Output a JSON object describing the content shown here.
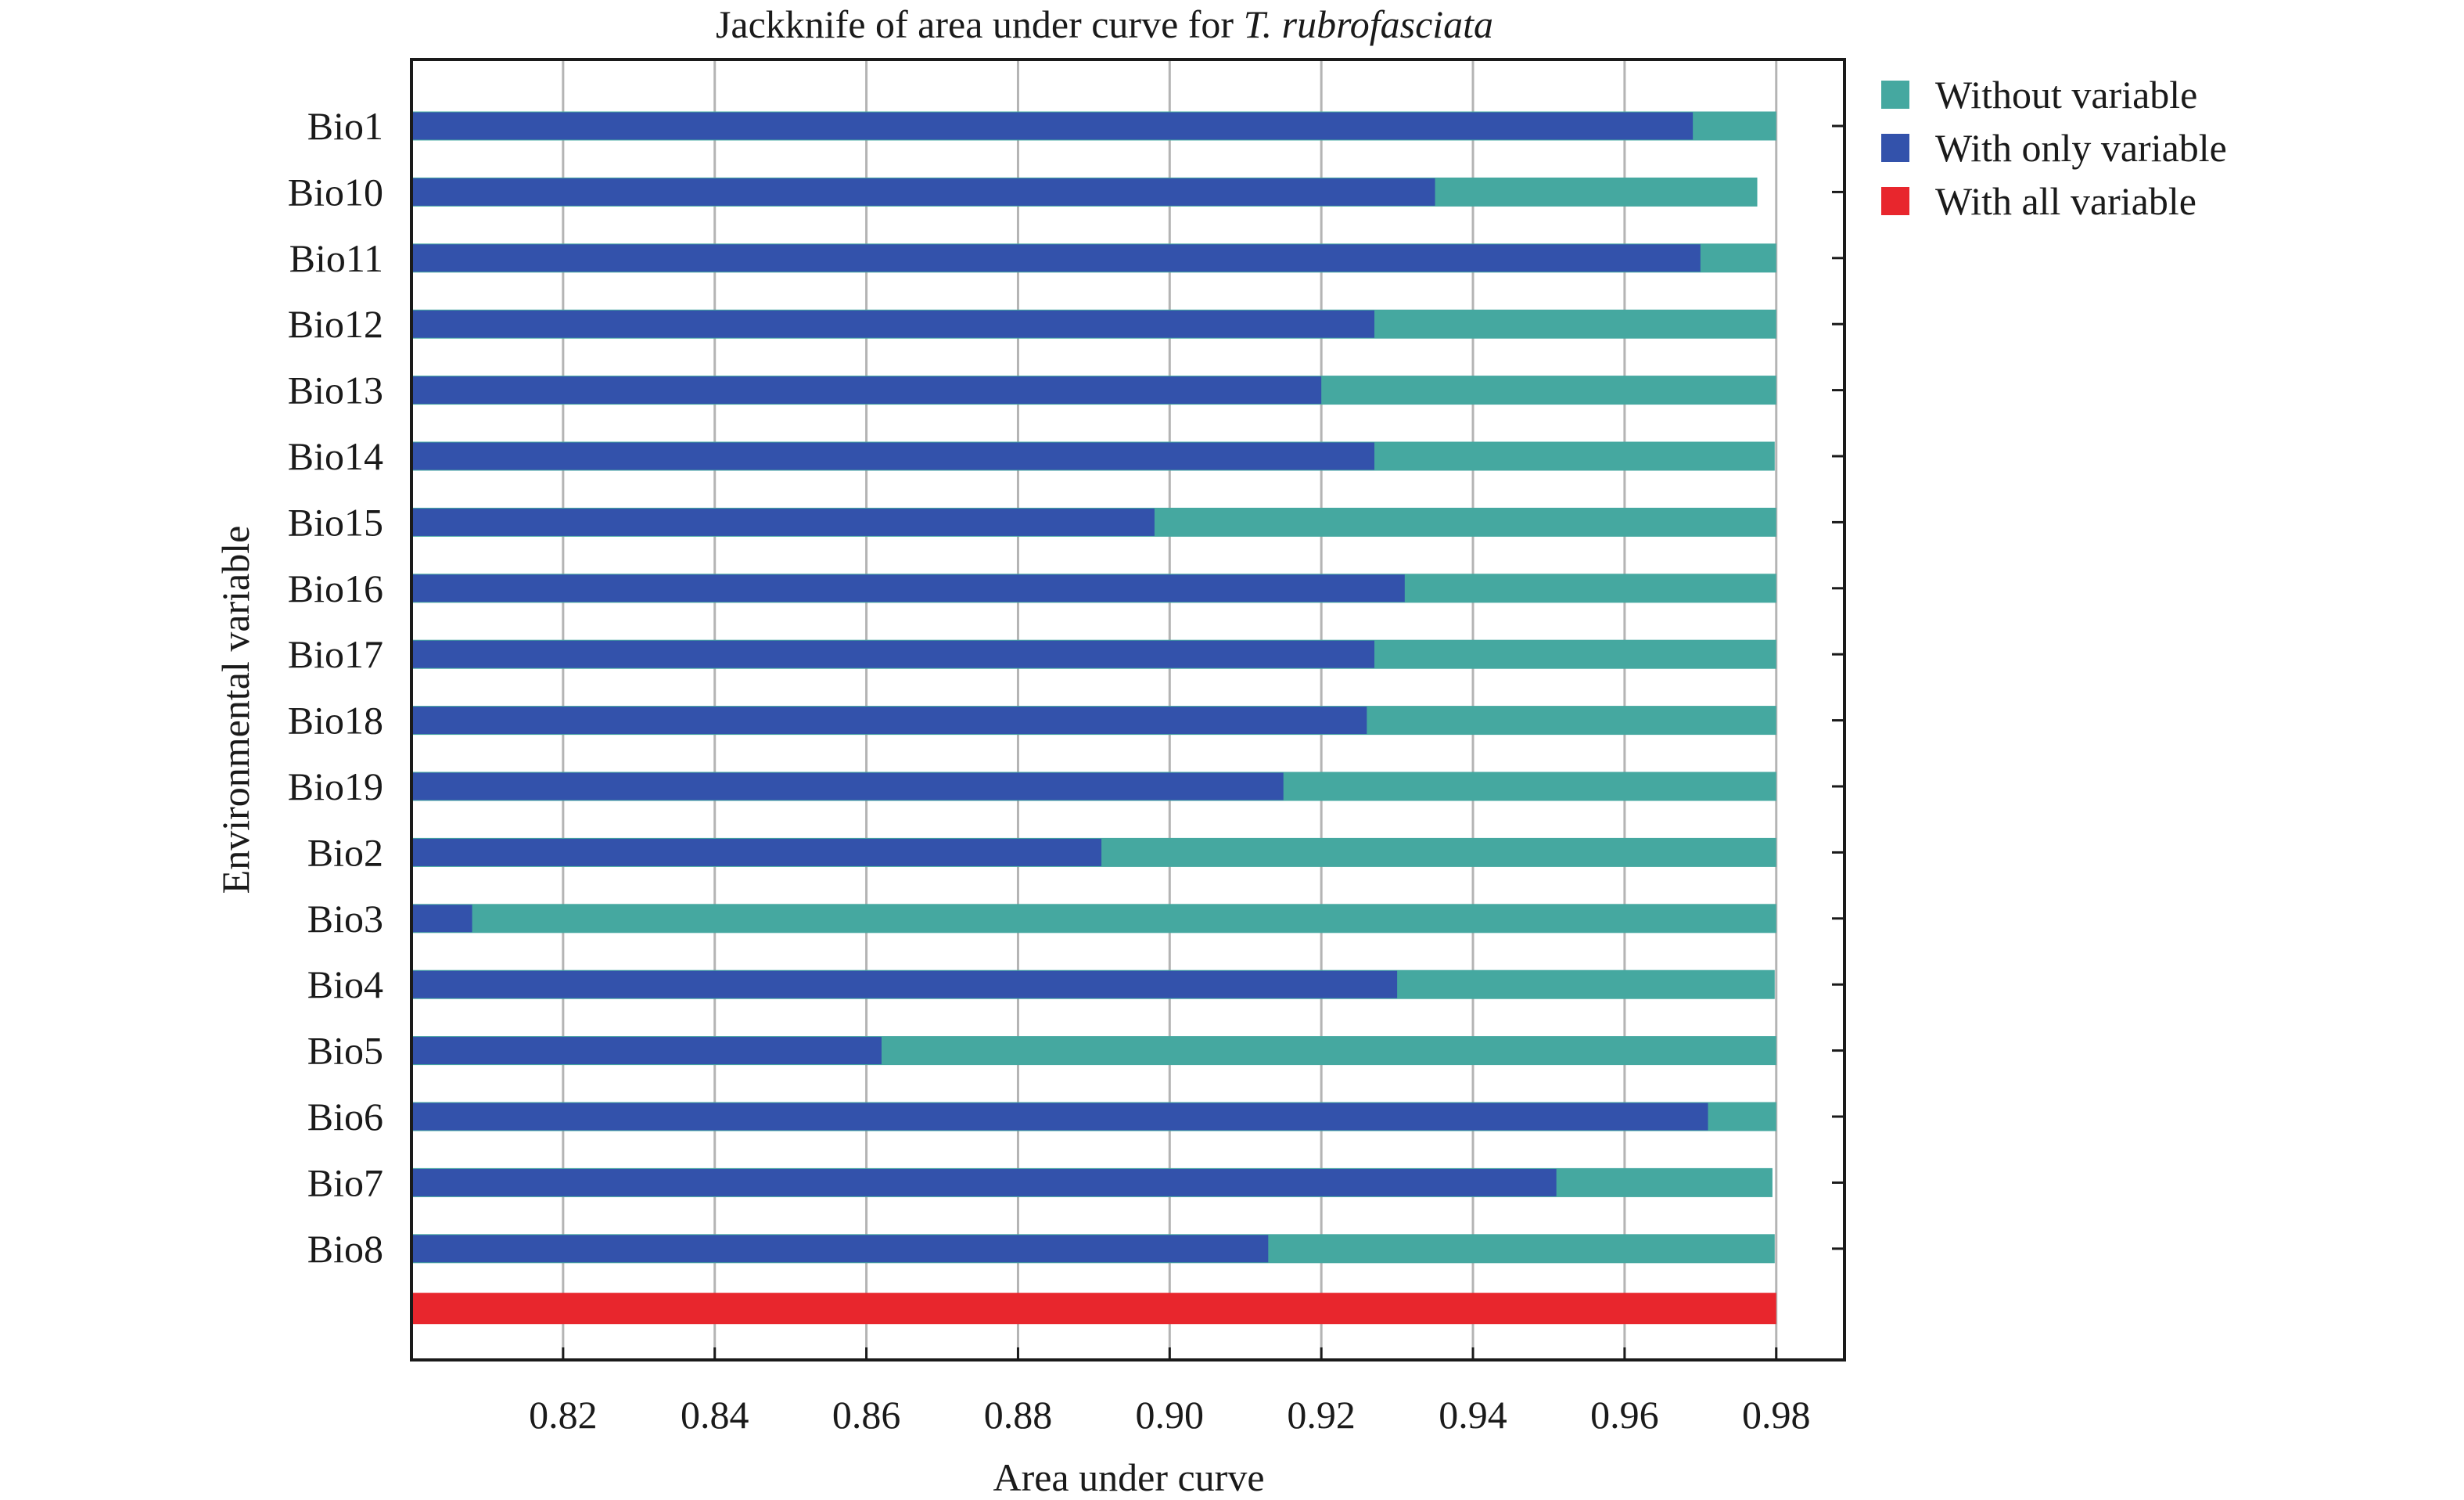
{
  "chart_data": {
    "type": "bar",
    "title_prefix": "Jackknife of area under curve for ",
    "title_italic": "T. rubrofasciata",
    "xlabel": "Area under curve",
    "ylabel": "Environmental variable",
    "xlim": [
      0.8,
      0.989
    ],
    "xticks": [
      0.82,
      0.84,
      0.86,
      0.88,
      0.9,
      0.92,
      0.94,
      0.96,
      0.98
    ],
    "xtick_labels": [
      "0.82",
      "0.84",
      "0.86",
      "0.88",
      "0.90",
      "0.92",
      "0.94",
      "0.96",
      "0.98"
    ],
    "grid": "vertical",
    "legend_position": "right, outside plot",
    "categories": [
      "Bio1",
      "Bio10",
      "Bio11",
      "Bio12",
      "Bio13",
      "Bio14",
      "Bio15",
      "Bio16",
      "Bio17",
      "Bio18",
      "Bio19",
      "Bio2",
      "Bio3",
      "Bio4",
      "Bio5",
      "Bio6",
      "Bio7",
      "Bio8"
    ],
    "series": [
      {
        "name": "Without variable",
        "color": "#45a8a0",
        "values": [
          0.98,
          0.9775,
          0.98,
          0.98,
          0.98,
          0.9798,
          0.98,
          0.98,
          0.98,
          0.98,
          0.98,
          0.98,
          0.98,
          0.9798,
          0.98,
          0.98,
          0.9795,
          0.9798
        ]
      },
      {
        "name": "With only variable",
        "color": "#3352ab",
        "values": [
          0.969,
          0.935,
          0.97,
          0.927,
          0.92,
          0.927,
          0.898,
          0.931,
          0.927,
          0.926,
          0.915,
          0.891,
          0.808,
          0.93,
          0.862,
          0.971,
          0.951,
          0.913
        ]
      }
    ],
    "all_variables": {
      "name": "With all variable",
      "color": "#e8262d",
      "value": 0.98
    }
  }
}
